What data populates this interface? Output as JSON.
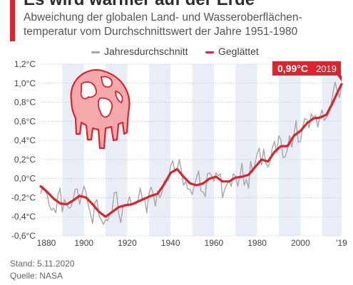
{
  "header": {
    "title": "Es wird wärmer auf der Erde",
    "subtitle": "Abweichung der globalen Land- und Wasseroberflächen-temperatur vom Durchschnittswert der Jahre 1951-1980"
  },
  "colors": {
    "accent": "#d8252e",
    "raw_line": "#a6a6a6",
    "band": "#e9edf6",
    "icon_fill": "#f6a9ad",
    "icon_stroke": "#d8252e"
  },
  "icon": "melting-globe-icon",
  "footer": {
    "date": "Stand: 5.11.2020",
    "source": "Quelle: NASA"
  },
  "chart_data": {
    "type": "line",
    "x_tick_labels": [
      "1880",
      "1900",
      "1920",
      "1940",
      "1960",
      "1980",
      "2000",
      "'19"
    ],
    "y_tick_labels": [
      "1,2°C",
      "1,0°C",
      "0,8°C",
      "0,6°C",
      "0,4°C",
      "0,2°C",
      "0,0°C",
      "-0,2°C",
      "-0,4°C",
      "-0,6°C"
    ],
    "ylim": [
      -0.6,
      1.2
    ],
    "xlim": [
      1880,
      2019
    ],
    "annotation": {
      "value_label": "0,99°C",
      "year_label": "2019",
      "x": 2019,
      "y": 0.99
    },
    "series": [
      {
        "name": "Jahresdurchschnitt",
        "x": [
          1880,
          1881,
          1882,
          1883,
          1884,
          1885,
          1886,
          1887,
          1888,
          1889,
          1890,
          1891,
          1892,
          1893,
          1894,
          1895,
          1896,
          1897,
          1898,
          1899,
          1900,
          1901,
          1902,
          1903,
          1904,
          1905,
          1906,
          1907,
          1908,
          1909,
          1910,
          1911,
          1912,
          1913,
          1914,
          1915,
          1916,
          1917,
          1918,
          1919,
          1920,
          1921,
          1922,
          1923,
          1924,
          1925,
          1926,
          1927,
          1928,
          1929,
          1930,
          1931,
          1932,
          1933,
          1934,
          1935,
          1936,
          1937,
          1938,
          1939,
          1940,
          1941,
          1942,
          1943,
          1944,
          1945,
          1946,
          1947,
          1948,
          1949,
          1950,
          1951,
          1952,
          1953,
          1954,
          1955,
          1956,
          1957,
          1958,
          1959,
          1960,
          1961,
          1962,
          1963,
          1964,
          1965,
          1966,
          1967,
          1968,
          1969,
          1970,
          1971,
          1972,
          1973,
          1974,
          1975,
          1976,
          1977,
          1978,
          1979,
          1980,
          1981,
          1982,
          1983,
          1984,
          1985,
          1986,
          1987,
          1988,
          1989,
          1990,
          1991,
          1992,
          1993,
          1994,
          1995,
          1996,
          1997,
          1998,
          1999,
          2000,
          2001,
          2002,
          2003,
          2004,
          2005,
          2006,
          2007,
          2008,
          2009,
          2010,
          2011,
          2012,
          2013,
          2014,
          2015,
          2016,
          2017,
          2018,
          2019
        ],
        "values": [
          -0.16,
          -0.08,
          -0.11,
          -0.17,
          -0.28,
          -0.33,
          -0.31,
          -0.36,
          -0.17,
          -0.1,
          -0.35,
          -0.22,
          -0.27,
          -0.31,
          -0.3,
          -0.22,
          -0.11,
          -0.11,
          -0.27,
          -0.17,
          -0.08,
          -0.15,
          -0.28,
          -0.37,
          -0.47,
          -0.26,
          -0.22,
          -0.39,
          -0.43,
          -0.48,
          -0.43,
          -0.44,
          -0.36,
          -0.34,
          -0.15,
          -0.14,
          -0.36,
          -0.46,
          -0.3,
          -0.27,
          -0.27,
          -0.19,
          -0.28,
          -0.26,
          -0.27,
          -0.22,
          -0.1,
          -0.22,
          -0.2,
          -0.36,
          -0.16,
          -0.09,
          -0.16,
          -0.29,
          -0.13,
          -0.2,
          -0.15,
          -0.03,
          -0.01,
          -0.02,
          0.13,
          0.19,
          0.07,
          0.09,
          0.2,
          0.09,
          -0.07,
          -0.03,
          -0.11,
          -0.11,
          -0.17,
          -0.07,
          0.01,
          0.08,
          -0.13,
          -0.14,
          -0.19,
          0.05,
          0.06,
          0.03,
          -0.03,
          0.06,
          0.03,
          0.05,
          -0.2,
          -0.11,
          -0.06,
          -0.02,
          -0.08,
          0.05,
          0.03,
          -0.08,
          0.01,
          0.16,
          -0.07,
          -0.01,
          -0.1,
          0.18,
          0.07,
          0.16,
          0.26,
          0.32,
          0.14,
          0.31,
          0.16,
          0.12,
          0.18,
          0.32,
          0.39,
          0.27,
          0.45,
          0.4,
          0.22,
          0.23,
          0.31,
          0.45,
          0.33,
          0.46,
          0.61,
          0.38,
          0.39,
          0.54,
          0.63,
          0.62,
          0.53,
          0.68,
          0.64,
          0.66,
          0.54,
          0.65,
          0.72,
          0.61,
          0.64,
          0.68,
          0.75,
          0.9,
          1.01,
          0.92,
          0.85,
          0.98
        ]
      },
      {
        "name": "Geglättet",
        "x": [
          1880,
          1883,
          1886,
          1889,
          1892,
          1895,
          1898,
          1901,
          1904,
          1907,
          1910,
          1913,
          1916,
          1919,
          1922,
          1925,
          1928,
          1931,
          1934,
          1937,
          1940,
          1943,
          1946,
          1949,
          1952,
          1955,
          1958,
          1961,
          1964,
          1967,
          1970,
          1973,
          1976,
          1979,
          1982,
          1985,
          1988,
          1991,
          1994,
          1997,
          2000,
          2003,
          2006,
          2009,
          2012,
          2015,
          2017,
          2019
        ],
        "values": [
          -0.08,
          -0.14,
          -0.21,
          -0.26,
          -0.27,
          -0.23,
          -0.18,
          -0.2,
          -0.27,
          -0.35,
          -0.4,
          -0.35,
          -0.3,
          -0.28,
          -0.27,
          -0.24,
          -0.21,
          -0.18,
          -0.16,
          -0.06,
          0.06,
          0.1,
          0.02,
          -0.05,
          -0.07,
          -0.05,
          0.0,
          0.02,
          -0.03,
          -0.03,
          0.01,
          0.02,
          0.04,
          0.12,
          0.2,
          0.18,
          0.28,
          0.34,
          0.34,
          0.45,
          0.5,
          0.58,
          0.63,
          0.64,
          0.67,
          0.8,
          0.9,
          0.99
        ]
      }
    ]
  }
}
